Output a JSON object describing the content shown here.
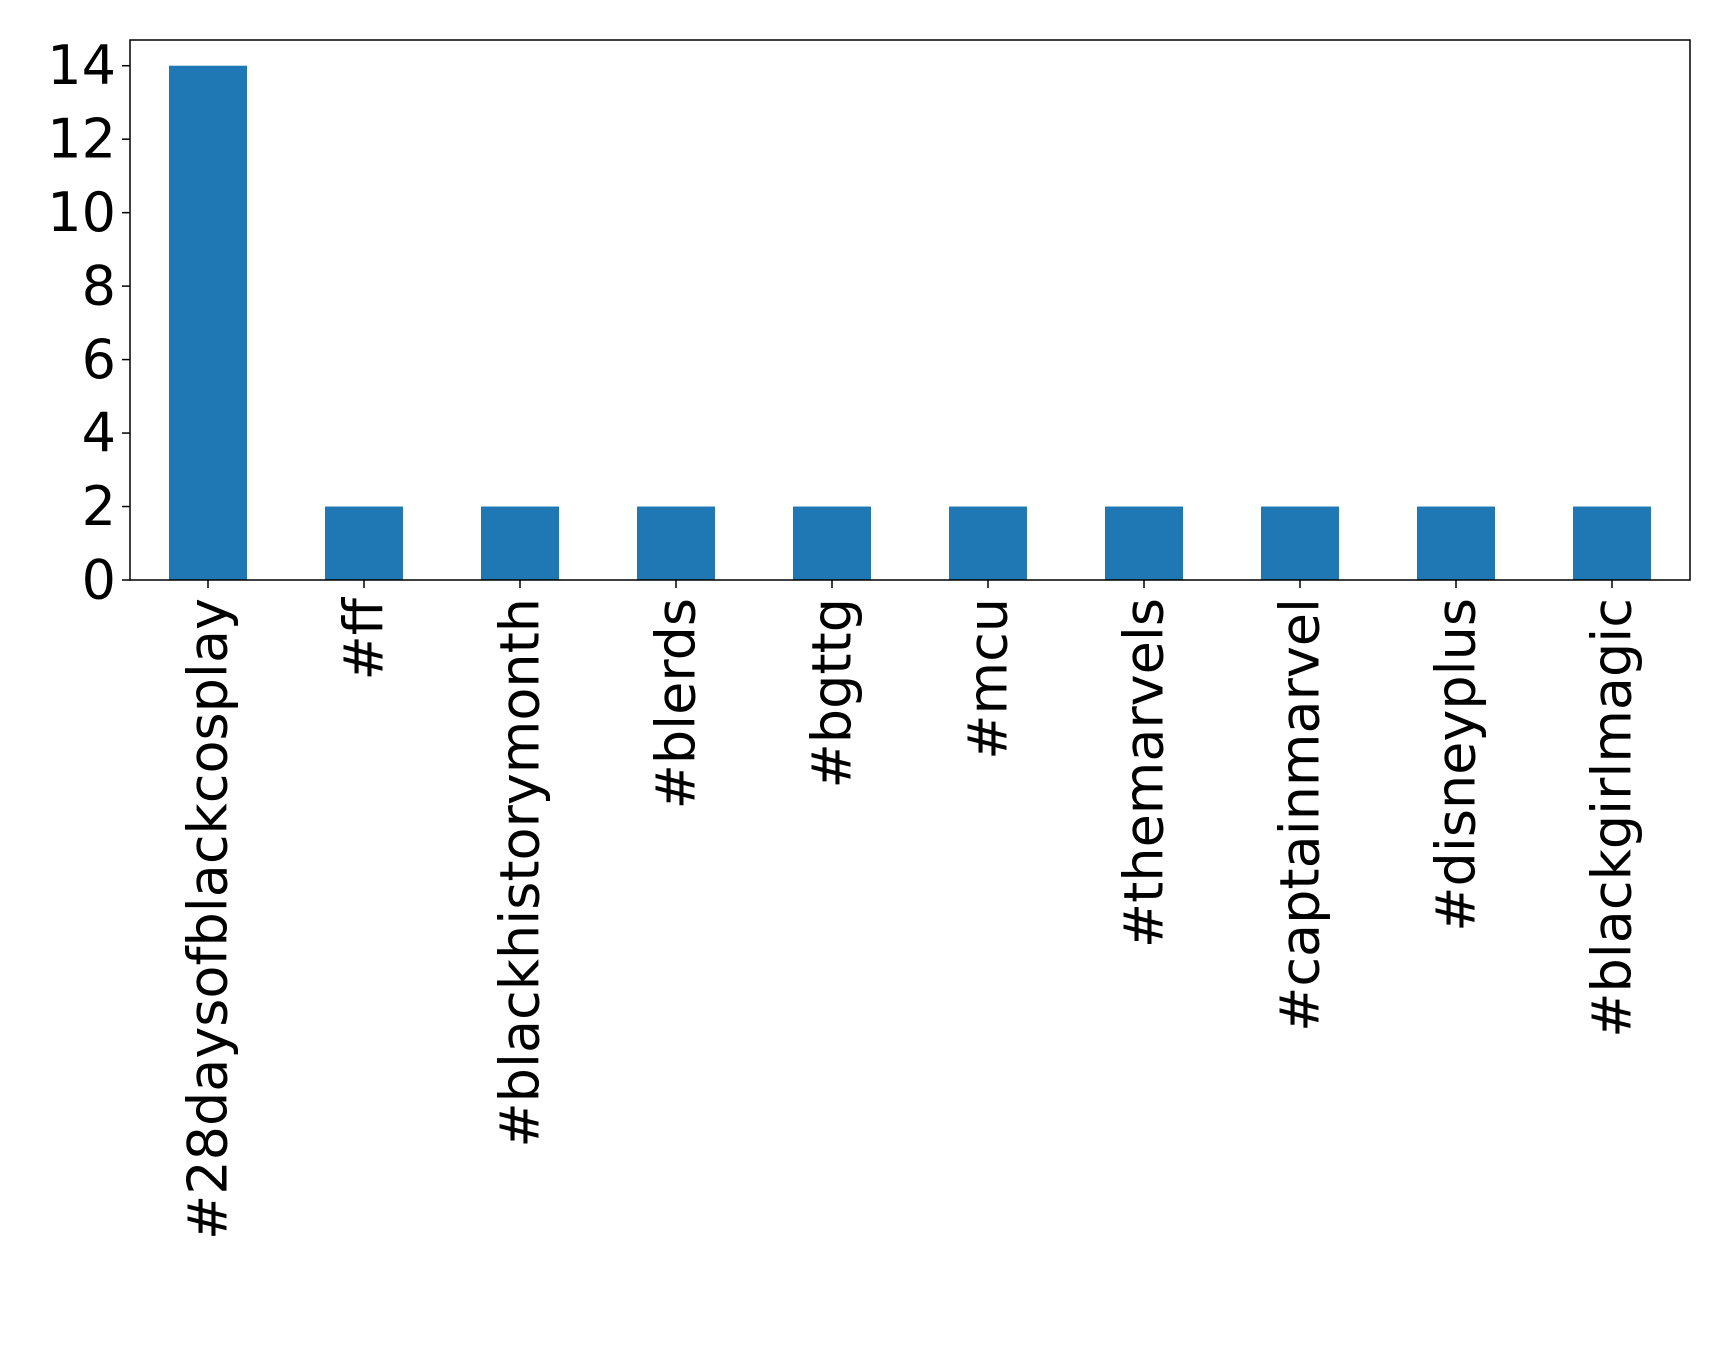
{
  "chart_data": {
    "type": "bar",
    "categories": [
      "#28daysofblackcosplay",
      "#ff",
      "#blackhistorymonth",
      "#blerds",
      "#bgttg",
      "#mcu",
      "#themarvels",
      "#captainmarvel",
      "#disneyplus",
      "#blackgirlmagic"
    ],
    "values": [
      14,
      2,
      2,
      2,
      2,
      2,
      2,
      2,
      2,
      2
    ],
    "yticks": [
      0,
      2,
      4,
      6,
      8,
      10,
      12,
      14
    ],
    "ylim": [
      0,
      14.7
    ],
    "title": "",
    "xlabel": "",
    "ylabel": "",
    "grid": false,
    "bar_color": "#1f77b4"
  }
}
